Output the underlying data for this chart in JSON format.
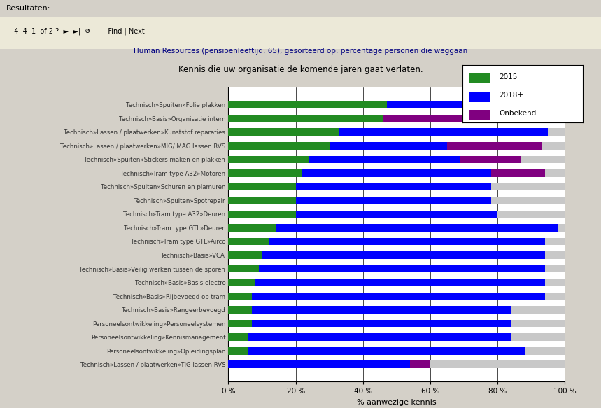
{
  "title": "Kennis die uw organisatie de komende jaren gaat verlaten.",
  "subtitle": "Human Resources (pensioenleeftijd: 65), gesorteerd op: percentage personen die weggaan",
  "xlabel": "% aanwezige kennis",
  "header_line1": "Resultaten:",
  "header_line2": "  4   1    of 2 ?      Find | Next",
  "categories": [
    "Technisch»Spuiten»Folie plakken",
    "Technisch»Basis»Organisatie intern",
    "Technisch»Lassen / plaatwerken»Kunststof reparaties",
    "Technisch»Lassen / plaatwerken»MIG/ MAG lassen RVS",
    "Technisch»Spuiten»Stickers maken en plakken",
    "Technisch»Tram type A32»Motoren",
    "Technisch»Spuiten»Schuren en plamuren",
    "Technisch»Spuiten»Spotrepair",
    "Technisch»Tram type A32»Deuren",
    "Technisch»Tram type GTL»Deuren",
    "Technisch»Tram type GTL»Airco",
    "Technisch»Basis»VCA",
    "Technisch»Basis»Veilig werken tussen de sporen",
    "Technisch»Basis»Basis electro",
    "Technisch»Basis»Rijbevoegd op tram",
    "Technisch»Basis»Rangeerbevoegd",
    "Personeelsontwikkeling»Personeelsystemen",
    "Personeelsontwikkeling»Kennismanagement",
    "Personeelsontwikkeling»Opleidingsplan",
    "Technisch»Lassen / plaatwerken»TIG lassen RVS"
  ],
  "green_values": [
    47,
    46,
    33,
    30,
    24,
    22,
    20,
    20,
    20,
    14,
    12,
    10,
    9,
    8,
    7,
    7,
    7,
    6,
    6,
    0
  ],
  "blue_values": [
    48,
    0,
    62,
    35,
    45,
    56,
    58,
    58,
    60,
    84,
    82,
    84,
    85,
    86,
    87,
    77,
    77,
    78,
    82,
    54
  ],
  "purple_values": [
    0,
    47,
    0,
    28,
    18,
    16,
    0,
    0,
    0,
    0,
    0,
    0,
    0,
    0,
    0,
    0,
    0,
    0,
    0,
    6
  ],
  "color_green": "#228B22",
  "color_blue": "#0000FF",
  "color_purple": "#800080",
  "color_gray": "#C8C8C8",
  "color_bg_outer": "#D4D0C8",
  "color_bg_header": "#ECE9D8",
  "color_white": "#FFFFFF",
  "legend_labels": [
    "2015",
    "2018+",
    "Onbekend"
  ],
  "bar_height": 0.55,
  "figsize": [
    8.59,
    5.83
  ],
  "dpi": 100,
  "label_color": "#333333",
  "subtitle_color": "#000080",
  "title_color": "#000000"
}
